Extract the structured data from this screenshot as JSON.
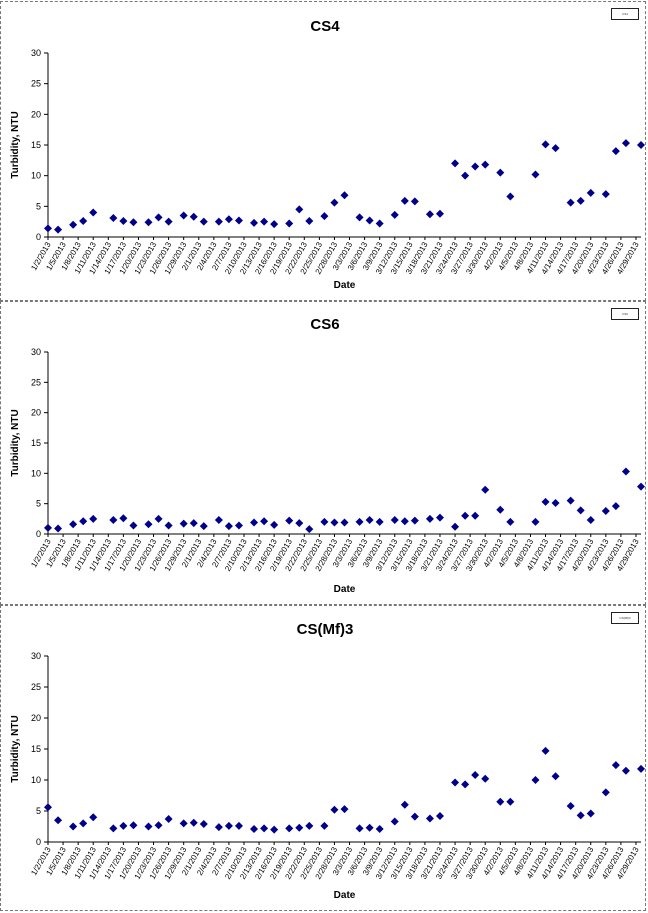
{
  "chart_data": [
    {
      "type": "scatter",
      "title": "CS4",
      "xlabel": "Date",
      "ylabel": "Turbidity, NTU",
      "ylim": [
        0,
        30
      ],
      "yticks": [
        0,
        5,
        10,
        15,
        20,
        25,
        30
      ],
      "grid": false,
      "legend": "top-right",
      "legend_text": "CS4",
      "marker_color": "#00008B",
      "xtick_labels": [
        "1/2/2013",
        "1/5/2013",
        "1/8/2013",
        "1/11/2013",
        "1/14/2013",
        "1/17/2013",
        "1/20/2013",
        "1/23/2013",
        "1/26/2013",
        "1/29/2013",
        "2/1/2013",
        "2/4/2013",
        "2/7/2013",
        "2/10/2013",
        "2/13/2013",
        "2/16/2013",
        "2/19/2013",
        "2/22/2013",
        "2/25/2013",
        "2/28/2013",
        "3/3/2013",
        "3/6/2013",
        "3/9/2013",
        "3/12/2013",
        "3/15/2013",
        "3/18/2013",
        "3/21/2013",
        "3/24/2013",
        "3/27/2013",
        "3/30/2013",
        "4/2/2013",
        "4/5/2013",
        "4/8/2013",
        "4/11/2013",
        "4/14/2013",
        "4/17/2013",
        "4/20/2013",
        "4/23/2013",
        "4/26/2013",
        "4/29/2013"
      ],
      "points": [
        {
          "x": "1/2/2013",
          "y": 1.4
        },
        {
          "x": "1/4/2013",
          "y": 1.2
        },
        {
          "x": "1/7/2013",
          "y": 2.0
        },
        {
          "x": "1/9/2013",
          "y": 2.6
        },
        {
          "x": "1/11/2013",
          "y": 4.0
        },
        {
          "x": "1/15/2013",
          "y": 3.1
        },
        {
          "x": "1/17/2013",
          "y": 2.6
        },
        {
          "x": "1/19/2013",
          "y": 2.4
        },
        {
          "x": "1/22/2013",
          "y": 2.4
        },
        {
          "x": "1/24/2013",
          "y": 3.2
        },
        {
          "x": "1/26/2013",
          "y": 2.5
        },
        {
          "x": "1/29/2013",
          "y": 3.5
        },
        {
          "x": "1/31/2013",
          "y": 3.3
        },
        {
          "x": "2/2/2013",
          "y": 2.5
        },
        {
          "x": "2/5/2013",
          "y": 2.5
        },
        {
          "x": "2/7/2013",
          "y": 2.9
        },
        {
          "x": "2/9/2013",
          "y": 2.7
        },
        {
          "x": "2/12/2013",
          "y": 2.3
        },
        {
          "x": "2/14/2013",
          "y": 2.5
        },
        {
          "x": "2/16/2013",
          "y": 2.1
        },
        {
          "x": "2/19/2013",
          "y": 2.2
        },
        {
          "x": "2/21/2013",
          "y": 4.5
        },
        {
          "x": "2/23/2013",
          "y": 2.6
        },
        {
          "x": "2/26/2013",
          "y": 3.4
        },
        {
          "x": "2/28/2013",
          "y": 5.6
        },
        {
          "x": "3/2/2013",
          "y": 6.8
        },
        {
          "x": "3/5/2013",
          "y": 3.2
        },
        {
          "x": "3/7/2013",
          "y": 2.7
        },
        {
          "x": "3/9/2013",
          "y": 2.2
        },
        {
          "x": "3/12/2013",
          "y": 3.6
        },
        {
          "x": "3/14/2013",
          "y": 5.9
        },
        {
          "x": "3/16/2013",
          "y": 5.8
        },
        {
          "x": "3/19/2013",
          "y": 3.7
        },
        {
          "x": "3/21/2013",
          "y": 3.8
        },
        {
          "x": "3/24/2013",
          "y": 12.0
        },
        {
          "x": "3/26/2013",
          "y": 10.0
        },
        {
          "x": "3/28/2013",
          "y": 11.5
        },
        {
          "x": "3/30/2013",
          "y": 11.8
        },
        {
          "x": "4/2/2013",
          "y": 10.5
        },
        {
          "x": "4/4/2013",
          "y": 6.6
        },
        {
          "x": "4/9/2013",
          "y": 10.2
        },
        {
          "x": "4/11/2013",
          "y": 15.1
        },
        {
          "x": "4/13/2013",
          "y": 14.5
        },
        {
          "x": "4/16/2013",
          "y": 5.6
        },
        {
          "x": "4/18/2013",
          "y": 5.9
        },
        {
          "x": "4/20/2013",
          "y": 7.2
        },
        {
          "x": "4/23/2013",
          "y": 7.0
        },
        {
          "x": "4/25/2013",
          "y": 14.0
        },
        {
          "x": "4/27/2013",
          "y": 15.3
        },
        {
          "x": "4/30/2013",
          "y": 15.0
        }
      ]
    },
    {
      "type": "scatter",
      "title": "CS6",
      "xlabel": "Date",
      "ylabel": "Turbidity, NTU",
      "ylim": [
        0,
        30
      ],
      "yticks": [
        0,
        5,
        10,
        15,
        20,
        25,
        30
      ],
      "grid": false,
      "legend": "top-right",
      "legend_text": "CS6",
      "marker_color": "#00008B",
      "xtick_labels": [
        "1/2/2013",
        "1/5/2013",
        "1/8/2013",
        "1/11/2013",
        "1/14/2013",
        "1/17/2013",
        "1/20/2013",
        "1/23/2013",
        "1/26/2013",
        "1/29/2013",
        "2/1/2013",
        "2/4/2013",
        "2/7/2013",
        "2/10/2013",
        "2/13/2013",
        "2/16/2013",
        "2/19/2013",
        "2/22/2013",
        "2/25/2013",
        "2/28/2013",
        "3/3/2013",
        "3/6/2013",
        "3/9/2013",
        "3/12/2013",
        "3/15/2013",
        "3/18/2013",
        "3/21/2013",
        "3/24/2013",
        "3/27/2013",
        "3/30/2013",
        "4/2/2013",
        "4/5/2013",
        "4/8/2013",
        "4/11/2013",
        "4/14/2013",
        "4/17/2013",
        "4/20/2013",
        "4/23/2013",
        "4/26/2013",
        "4/29/2013"
      ],
      "points": [
        {
          "x": "1/2/2013",
          "y": 1.0
        },
        {
          "x": "1/4/2013",
          "y": 0.9
        },
        {
          "x": "1/7/2013",
          "y": 1.6
        },
        {
          "x": "1/9/2013",
          "y": 2.1
        },
        {
          "x": "1/11/2013",
          "y": 2.5
        },
        {
          "x": "1/15/2013",
          "y": 2.3
        },
        {
          "x": "1/17/2013",
          "y": 2.6
        },
        {
          "x": "1/19/2013",
          "y": 1.4
        },
        {
          "x": "1/22/2013",
          "y": 1.6
        },
        {
          "x": "1/24/2013",
          "y": 2.5
        },
        {
          "x": "1/26/2013",
          "y": 1.4
        },
        {
          "x": "1/29/2013",
          "y": 1.7
        },
        {
          "x": "1/31/2013",
          "y": 1.8
        },
        {
          "x": "2/2/2013",
          "y": 1.3
        },
        {
          "x": "2/5/2013",
          "y": 2.3
        },
        {
          "x": "2/7/2013",
          "y": 1.3
        },
        {
          "x": "2/9/2013",
          "y": 1.4
        },
        {
          "x": "2/12/2013",
          "y": 1.9
        },
        {
          "x": "2/14/2013",
          "y": 2.1
        },
        {
          "x": "2/16/2013",
          "y": 1.5
        },
        {
          "x": "2/19/2013",
          "y": 2.2
        },
        {
          "x": "2/21/2013",
          "y": 1.8
        },
        {
          "x": "2/23/2013",
          "y": 0.8
        },
        {
          "x": "2/26/2013",
          "y": 2.0
        },
        {
          "x": "2/28/2013",
          "y": 1.9
        },
        {
          "x": "3/2/2013",
          "y": 1.9
        },
        {
          "x": "3/5/2013",
          "y": 2.0
        },
        {
          "x": "3/7/2013",
          "y": 2.3
        },
        {
          "x": "3/9/2013",
          "y": 2.0
        },
        {
          "x": "3/12/2013",
          "y": 2.3
        },
        {
          "x": "3/14/2013",
          "y": 2.1
        },
        {
          "x": "3/16/2013",
          "y": 2.2
        },
        {
          "x": "3/19/2013",
          "y": 2.5
        },
        {
          "x": "3/21/2013",
          "y": 2.7
        },
        {
          "x": "3/24/2013",
          "y": 1.2
        },
        {
          "x": "3/26/2013",
          "y": 3.0
        },
        {
          "x": "3/28/2013",
          "y": 3.0
        },
        {
          "x": "3/30/2013",
          "y": 7.3
        },
        {
          "x": "4/2/2013",
          "y": 4.0
        },
        {
          "x": "4/4/2013",
          "y": 2.0
        },
        {
          "x": "4/9/2013",
          "y": 2.0
        },
        {
          "x": "4/11/2013",
          "y": 5.3
        },
        {
          "x": "4/13/2013",
          "y": 5.1
        },
        {
          "x": "4/16/2013",
          "y": 5.5
        },
        {
          "x": "4/18/2013",
          "y": 3.9
        },
        {
          "x": "4/20/2013",
          "y": 2.3
        },
        {
          "x": "4/23/2013",
          "y": 3.8
        },
        {
          "x": "4/25/2013",
          "y": 4.6
        },
        {
          "x": "4/27/2013",
          "y": 10.3
        },
        {
          "x": "4/30/2013",
          "y": 7.8
        }
      ]
    },
    {
      "type": "scatter",
      "title": "CS(Mf)3",
      "xlabel": "Date",
      "ylabel": "Turbidity, NTU",
      "ylim": [
        0,
        30
      ],
      "yticks": [
        0,
        5,
        10,
        15,
        20,
        25,
        30
      ],
      "grid": false,
      "legend": "top-right",
      "legend_text": "CS(Mf)3",
      "marker_color": "#00008B",
      "xtick_labels": [
        "1/2/2013",
        "1/5/2013",
        "1/8/2013",
        "1/11/2013",
        "1/14/2013",
        "1/17/2013",
        "1/20/2013",
        "1/23/2013",
        "1/26/2013",
        "1/29/2013",
        "2/1/2013",
        "2/4/2013",
        "2/7/2013",
        "2/10/2013",
        "2/13/2013",
        "2/16/2013",
        "2/19/2013",
        "2/22/2013",
        "2/25/2013",
        "2/28/2013",
        "3/3/2013",
        "3/6/2013",
        "3/9/2013",
        "3/12/2013",
        "3/15/2013",
        "3/18/2013",
        "3/21/2013",
        "3/24/2013",
        "3/27/2013",
        "3/30/2013",
        "4/2/2013",
        "4/5/2013",
        "4/8/2013",
        "4/11/2013",
        "4/14/2013",
        "4/17/2013",
        "4/20/2013",
        "4/23/2013",
        "4/26/2013",
        "4/29/2013"
      ],
      "points": [
        {
          "x": "1/2/2013",
          "y": 5.6
        },
        {
          "x": "1/4/2013",
          "y": 3.5
        },
        {
          "x": "1/7/2013",
          "y": 2.5
        },
        {
          "x": "1/9/2013",
          "y": 3.0
        },
        {
          "x": "1/11/2013",
          "y": 4.0
        },
        {
          "x": "1/15/2013",
          "y": 2.2
        },
        {
          "x": "1/17/2013",
          "y": 2.6
        },
        {
          "x": "1/19/2013",
          "y": 2.7
        },
        {
          "x": "1/22/2013",
          "y": 2.5
        },
        {
          "x": "1/24/2013",
          "y": 2.7
        },
        {
          "x": "1/26/2013",
          "y": 3.7
        },
        {
          "x": "1/29/2013",
          "y": 3.0
        },
        {
          "x": "1/31/2013",
          "y": 3.1
        },
        {
          "x": "2/2/2013",
          "y": 2.9
        },
        {
          "x": "2/5/2013",
          "y": 2.4
        },
        {
          "x": "2/7/2013",
          "y": 2.6
        },
        {
          "x": "2/9/2013",
          "y": 2.6
        },
        {
          "x": "2/12/2013",
          "y": 2.1
        },
        {
          "x": "2/14/2013",
          "y": 2.2
        },
        {
          "x": "2/16/2013",
          "y": 2.0
        },
        {
          "x": "2/19/2013",
          "y": 2.2
        },
        {
          "x": "2/21/2013",
          "y": 2.3
        },
        {
          "x": "2/23/2013",
          "y": 2.6
        },
        {
          "x": "2/26/2013",
          "y": 2.6
        },
        {
          "x": "2/28/2013",
          "y": 5.2
        },
        {
          "x": "3/2/2013",
          "y": 5.3
        },
        {
          "x": "3/5/2013",
          "y": 2.2
        },
        {
          "x": "3/7/2013",
          "y": 2.3
        },
        {
          "x": "3/9/2013",
          "y": 2.1
        },
        {
          "x": "3/12/2013",
          "y": 3.3
        },
        {
          "x": "3/14/2013",
          "y": 6.0
        },
        {
          "x": "3/16/2013",
          "y": 4.1
        },
        {
          "x": "3/19/2013",
          "y": 3.8
        },
        {
          "x": "3/21/2013",
          "y": 4.2
        },
        {
          "x": "3/24/2013",
          "y": 9.6
        },
        {
          "x": "3/26/2013",
          "y": 9.3
        },
        {
          "x": "3/28/2013",
          "y": 10.8
        },
        {
          "x": "3/30/2013",
          "y": 10.2
        },
        {
          "x": "4/2/2013",
          "y": 6.5
        },
        {
          "x": "4/4/2013",
          "y": 6.5
        },
        {
          "x": "4/9/2013",
          "y": 10.0
        },
        {
          "x": "4/11/2013",
          "y": 14.7
        },
        {
          "x": "4/13/2013",
          "y": 10.6
        },
        {
          "x": "4/16/2013",
          "y": 5.8
        },
        {
          "x": "4/18/2013",
          "y": 4.3
        },
        {
          "x": "4/20/2013",
          "y": 4.6
        },
        {
          "x": "4/23/2013",
          "y": 8.0
        },
        {
          "x": "4/25/2013",
          "y": 12.4
        },
        {
          "x": "4/27/2013",
          "y": 11.5
        },
        {
          "x": "4/30/2013",
          "y": 11.8
        }
      ]
    }
  ]
}
